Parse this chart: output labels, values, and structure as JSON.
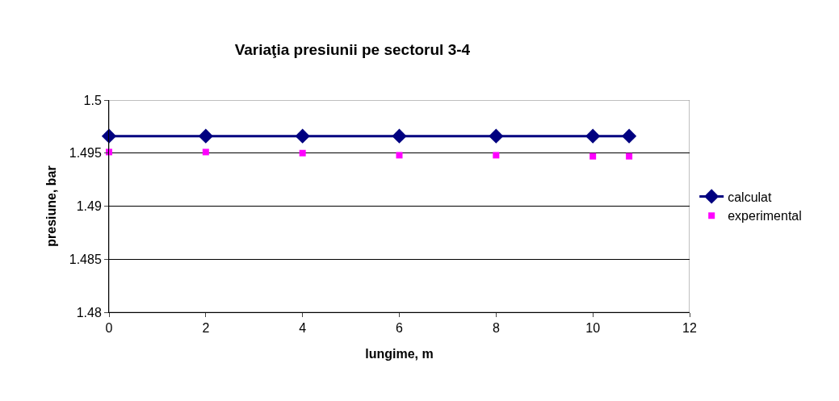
{
  "chart_data": {
    "type": "line",
    "title": "Variaţia presiunii pe sectorul 3-4",
    "xlabel": "lungime, m",
    "ylabel": "presiune, bar",
    "x": [
      0,
      2,
      4,
      6,
      8,
      10,
      10.75
    ],
    "series": [
      {
        "name": "calculat",
        "color": "#000080",
        "values": [
          1.4966,
          1.4966,
          1.4966,
          1.4966,
          1.4966,
          1.4966,
          1.4966
        ],
        "marker": "diamond",
        "line_style": "solid"
      },
      {
        "name": "experimental",
        "type": "scatter",
        "color": "#ff00ff",
        "values": [
          1.4951,
          1.4951,
          1.495,
          1.4948,
          1.4948,
          1.4947,
          1.4947
        ],
        "marker": "square"
      }
    ],
    "xlim": [
      0,
      12
    ],
    "xticks": [
      0,
      2,
      4,
      6,
      8,
      10,
      12
    ],
    "ylim": [
      1.48,
      1.5
    ],
    "yticks": [
      1.48,
      1.485,
      1.49,
      1.495,
      1.5
    ],
    "grid": "y",
    "legend": "right"
  }
}
